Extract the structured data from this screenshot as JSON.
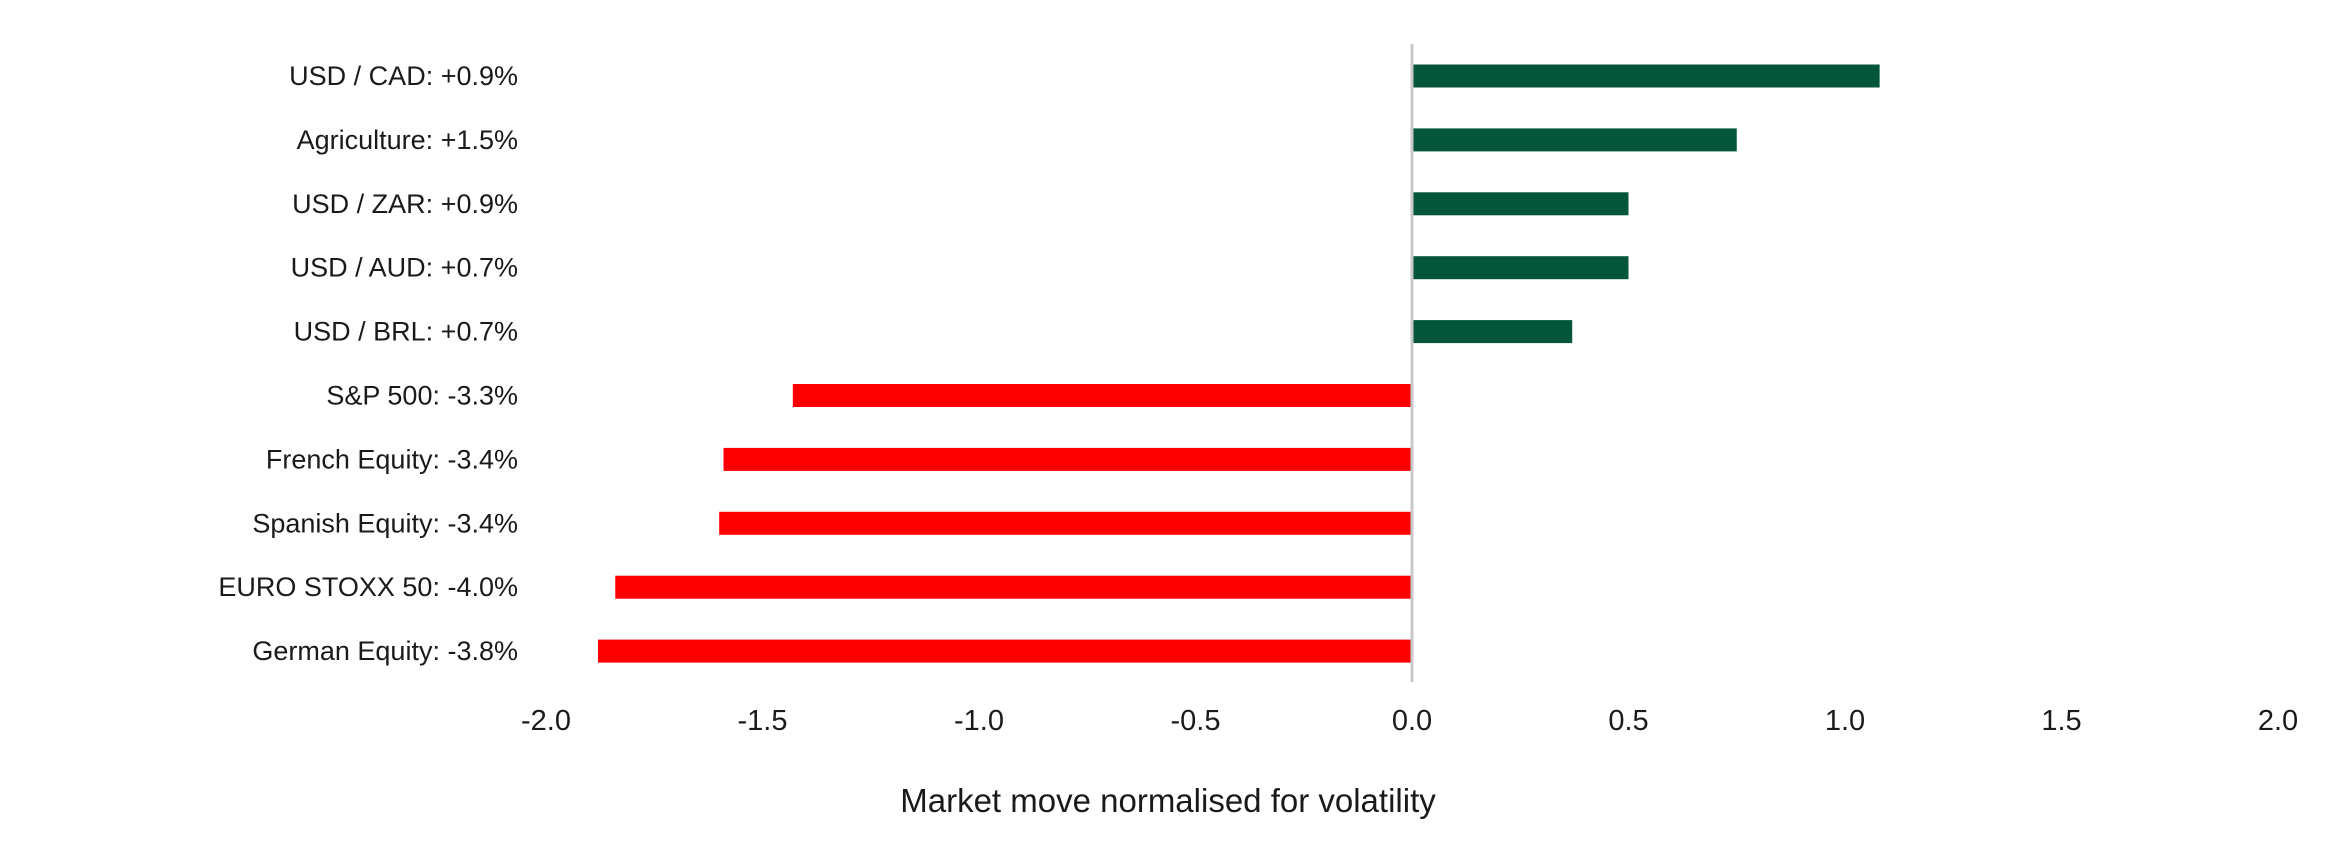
{
  "chart_data": {
    "type": "bar",
    "orientation": "horizontal",
    "title": "",
    "xlabel": "Market move normalised for volatility",
    "ylabel": "",
    "xlim": [
      -2.0,
      2.0
    ],
    "x_ticks": [
      "-2.0",
      "-1.5",
      "-1.0",
      "-0.5",
      "0.0",
      "0.5",
      "1.0",
      "1.5",
      "2.0"
    ],
    "grid": false,
    "legend": "none",
    "categories": [
      "USD / CAD: +0.9%",
      "Agriculture: +1.5%",
      "USD / ZAR: +0.9%",
      "USD / AUD: +0.7%",
      "USD / BRL: +0.7%",
      "S&P 500: -3.3%",
      "French Equity: -3.4%",
      "Spanish Equity: -3.4%",
      "EURO STOXX 50: -4.0%",
      "German Equity: -3.8%"
    ],
    "values": [
      1.08,
      0.75,
      0.5,
      0.5,
      0.37,
      -1.43,
      -1.59,
      -1.6,
      -1.84,
      -1.88
    ],
    "colors": {
      "positive": "#03563A",
      "negative": "#FF0000",
      "zero_line": "#c8c8c8",
      "text": "#1a1a1a"
    }
  }
}
